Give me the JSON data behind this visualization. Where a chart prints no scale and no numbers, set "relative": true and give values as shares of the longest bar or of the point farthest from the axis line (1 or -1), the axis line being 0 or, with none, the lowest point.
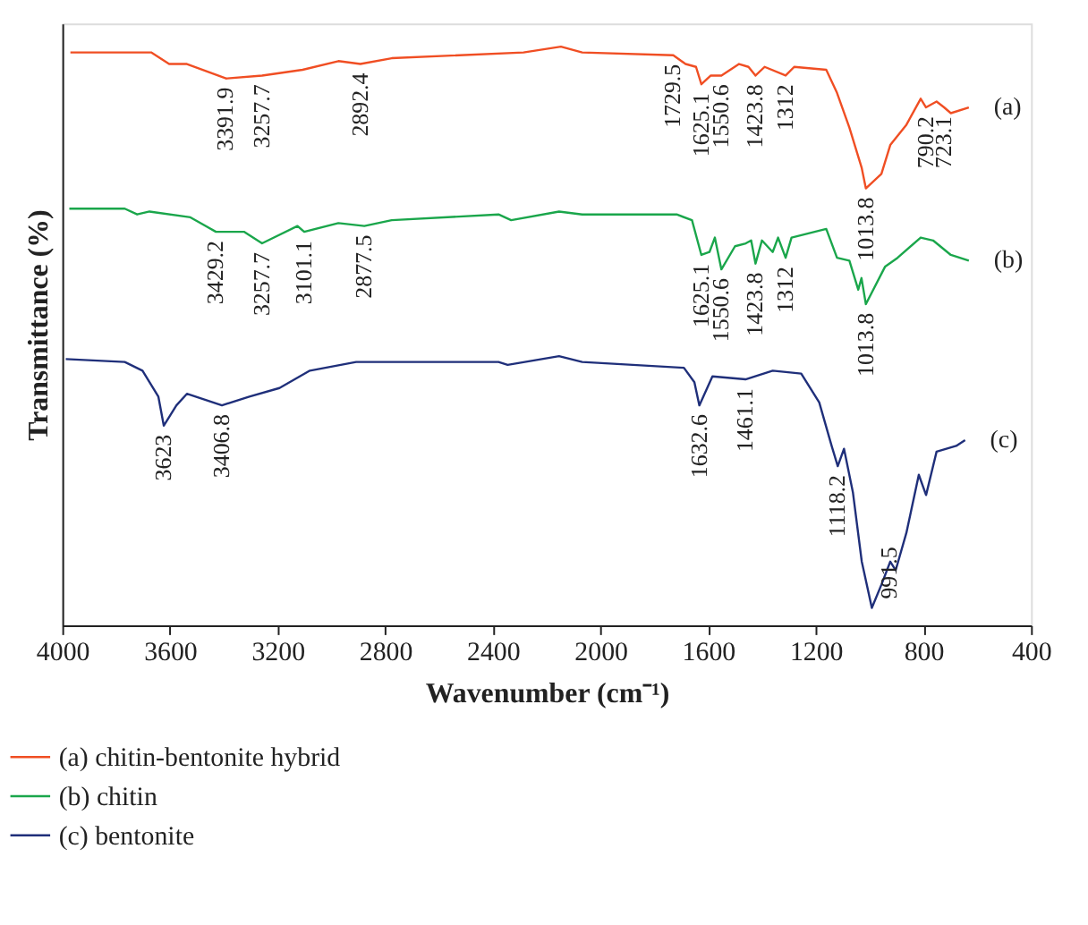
{
  "chart_data": {
    "type": "line",
    "relative": true,
    "xlabel": "Wavenumber (cm⁻¹)",
    "ylabel": "Transmittance (%)",
    "xlim": [
      4000,
      400
    ],
    "xticks": [
      4000,
      3600,
      3200,
      2800,
      2400,
      2000,
      1600,
      1200,
      800,
      400
    ],
    "grid": false,
    "legend": "bottom",
    "marker": "none",
    "line_style": "solid",
    "series": [
      {
        "name": "(a) chitin-bentonite hybrid",
        "color": "#f04e23",
        "x": [
          3970,
          3670,
          3603,
          3537,
          3391.9,
          3257.7,
          3107,
          2974,
          2892.4,
          2776,
          2286,
          2147,
          2068,
          1729.5,
          1684,
          1645,
          1625.1,
          1590,
          1550.6,
          1485,
          1450,
          1423.8,
          1390,
          1312,
          1280,
          1161,
          1121,
          1075,
          1029,
          1013.8,
          956,
          923,
          863,
          810,
          790.2,
          751,
          723.1,
          698,
          631
        ],
        "values": [
          0.99,
          0.99,
          0.97,
          0.97,
          0.945,
          0.95,
          0.96,
          0.975,
          0.97,
          0.98,
          0.99,
          1.0,
          0.99,
          0.985,
          0.97,
          0.965,
          0.935,
          0.95,
          0.95,
          0.97,
          0.965,
          0.95,
          0.965,
          0.95,
          0.965,
          0.96,
          0.92,
          0.86,
          0.79,
          0.755,
          0.78,
          0.83,
          0.865,
          0.91,
          0.895,
          0.905,
          0.895,
          0.885,
          0.895
        ]
      },
      {
        "name": "(b) chitin",
        "color": "#1aa64b",
        "x": [
          3974,
          3768,
          3722,
          3676,
          3524,
          3429.2,
          3325,
          3257.7,
          3126,
          3101.1,
          2974,
          2877.5,
          2776,
          2379,
          2332,
          2154,
          2068,
          1717,
          1660,
          1625.1,
          1595,
          1575,
          1550.6,
          1500,
          1460,
          1440,
          1423.8,
          1400,
          1360,
          1340,
          1312,
          1290,
          1161,
          1121,
          1075,
          1042,
          1030,
          1013.8,
          942,
          896,
          810,
          764,
          698,
          631
        ],
        "values": [
          0.72,
          0.72,
          0.71,
          0.715,
          0.705,
          0.68,
          0.68,
          0.66,
          0.69,
          0.68,
          0.695,
          0.69,
          0.7,
          0.71,
          0.7,
          0.715,
          0.71,
          0.71,
          0.7,
          0.64,
          0.645,
          0.67,
          0.615,
          0.655,
          0.66,
          0.665,
          0.625,
          0.665,
          0.645,
          0.67,
          0.635,
          0.67,
          0.685,
          0.635,
          0.63,
          0.58,
          0.6,
          0.555,
          0.62,
          0.635,
          0.67,
          0.665,
          0.64,
          0.63
        ]
      },
      {
        "name": "(c) bentonite",
        "color": "#1f2f7a",
        "x": [
          3987,
          3768,
          3702,
          3643,
          3623,
          3576,
          3537,
          3406.8,
          3305,
          3193,
          3080,
          2908,
          2379,
          2345,
          2154,
          2068,
          1690,
          1651,
          1632.6,
          1584,
          1461.1,
          1360,
          1254,
          1187,
          1141,
          1118.2,
          1095,
          1062,
          1029,
          991.5,
          956,
          923,
          903,
          863,
          817,
          790,
          751,
          678,
          645
        ],
        "values": [
          0.46,
          0.455,
          0.44,
          0.395,
          0.345,
          0.38,
          0.4,
          0.38,
          0.395,
          0.41,
          0.44,
          0.455,
          0.455,
          0.45,
          0.465,
          0.455,
          0.445,
          0.42,
          0.38,
          0.43,
          0.425,
          0.44,
          0.435,
          0.385,
          0.31,
          0.275,
          0.305,
          0.23,
          0.11,
          0.03,
          0.07,
          0.11,
          0.095,
          0.16,
          0.26,
          0.225,
          0.3,
          0.31,
          0.32
        ]
      }
    ],
    "annotations": [
      {
        "text": "3391.9",
        "x": 3391.9,
        "y": 0.945
      },
      {
        "text": "3257.7",
        "x": 3257.7,
        "y": 0.95
      },
      {
        "text": "2892.4",
        "x": 2892.4,
        "y": 0.97
      },
      {
        "text": "1729.5",
        "x": 1729.5,
        "y": 0.985
      },
      {
        "text": "1625.1",
        "x": 1625.1,
        "y": 0.935
      },
      {
        "text": "1550.6",
        "x": 1550.6,
        "y": 0.95
      },
      {
        "text": "1423.8",
        "x": 1423.8,
        "y": 0.95
      },
      {
        "text": "1312",
        "x": 1312,
        "y": 0.95
      },
      {
        "text": "1013.8",
        "x": 1013.8,
        "y": 0.755
      },
      {
        "text": "790.2",
        "x": 790.2,
        "y": 0.895
      },
      {
        "text": "723.1",
        "x": 723.1,
        "y": 0.895
      },
      {
        "text": "3429.2",
        "x": 3429.2,
        "y": 0.68
      },
      {
        "text": "3257.7",
        "x": 3257.7,
        "y": 0.66
      },
      {
        "text": "3101.1",
        "x": 3101.1,
        "y": 0.68
      },
      {
        "text": "2877.5",
        "x": 2877.5,
        "y": 0.69
      },
      {
        "text": "1625.1",
        "x": 1625.1,
        "y": 0.64
      },
      {
        "text": "1550.6",
        "x": 1550.6,
        "y": 0.615
      },
      {
        "text": "1423.8",
        "x": 1423.8,
        "y": 0.625
      },
      {
        "text": "1312",
        "x": 1312,
        "y": 0.635
      },
      {
        "text": "1013.8",
        "x": 1013.8,
        "y": 0.555
      },
      {
        "text": "3623",
        "x": 3623,
        "y": 0.345
      },
      {
        "text": "3406.8",
        "x": 3406.8,
        "y": 0.38
      },
      {
        "text": "1632.6",
        "x": 1632.6,
        "y": 0.38
      },
      {
        "text": "1461.1",
        "x": 1461.1,
        "y": 0.425
      },
      {
        "text": "1118.2",
        "x": 1118.2,
        "y": 0.275
      },
      {
        "text": "991.5",
        "x": 991.5,
        "y": 0.03
      },
      {
        "text": "(a)",
        "x": 631,
        "y": 0.895
      },
      {
        "text": "(b)",
        "x": 631,
        "y": 0.63
      },
      {
        "text": "(c)",
        "x": 645,
        "y": 0.32
      }
    ]
  }
}
